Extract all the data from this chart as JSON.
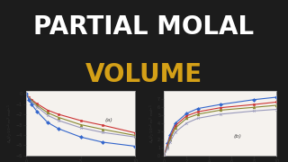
{
  "background_color": "#1c1c1c",
  "title_line1": "PARTIAL MOLAL",
  "title_line2": "VOLUME",
  "title_color1": "#ffffff",
  "title_color2": "#d4a017",
  "panel_bg": "#f5f2ee",
  "panel_border": "#aaaaaa",
  "plot_a": {
    "x": [
      0,
      0.3,
      0.5,
      1,
      2,
      3,
      5,
      7,
      10
    ],
    "curves": [
      {
        "y": [
          0,
          -0.35,
          -0.55,
          -0.95,
          -1.6,
          -2.0,
          -2.6,
          -3.05,
          -3.8
        ],
        "color": "#cc3333",
        "marker": "s"
      },
      {
        "y": [
          0,
          -0.4,
          -0.65,
          -1.1,
          -1.85,
          -2.3,
          -3.0,
          -3.45,
          -4.05
        ],
        "color": "#888830",
        "marker": "^"
      },
      {
        "y": [
          0,
          -0.45,
          -0.75,
          -1.25,
          -2.1,
          -2.6,
          -3.3,
          -3.75,
          -4.2
        ],
        "color": "#9999bb",
        "marker": "x"
      },
      {
        "y": [
          0,
          -0.6,
          -1.0,
          -1.7,
          -2.8,
          -3.4,
          -4.2,
          -4.7,
          -5.1
        ],
        "color": "#3366cc",
        "marker": "D"
      }
    ],
    "xlim": [
      0,
      10
    ],
    "ylim": [
      -6,
      0.3
    ],
    "xticks": [
      0,
      5,
      10
    ],
    "yticks": [
      0,
      -1,
      -2,
      -3,
      -4,
      -5,
      -6
    ],
    "label": "(a)"
  },
  "plot_b": {
    "x": [
      0,
      0.3,
      0.5,
      1,
      2,
      3,
      5,
      8,
      10
    ],
    "curves": [
      {
        "y": [
          0,
          1.5,
          2.5,
          4.0,
          5.2,
          5.8,
          6.3,
          6.9,
          7.2
        ],
        "color": "#3366cc",
        "marker": "D"
      },
      {
        "y": [
          0,
          1.3,
          2.2,
          3.7,
          4.9,
          5.4,
          5.9,
          6.3,
          6.6
        ],
        "color": "#cc3333",
        "marker": "s"
      },
      {
        "y": [
          0,
          1.1,
          2.0,
          3.4,
          4.6,
          5.1,
          5.6,
          5.95,
          6.2
        ],
        "color": "#888830",
        "marker": "^"
      },
      {
        "y": [
          0,
          0.9,
          1.6,
          2.9,
          4.0,
          4.6,
          5.1,
          5.5,
          5.7
        ],
        "color": "#9999bb",
        "marker": "x"
      }
    ],
    "xlim": [
      0,
      10
    ],
    "ylim": [
      0,
      8
    ],
    "xticks": [
      0,
      2,
      4,
      6,
      8,
      10
    ],
    "yticks": [
      0,
      1,
      2,
      3,
      4,
      5,
      6,
      7
    ],
    "label": "(b)"
  }
}
